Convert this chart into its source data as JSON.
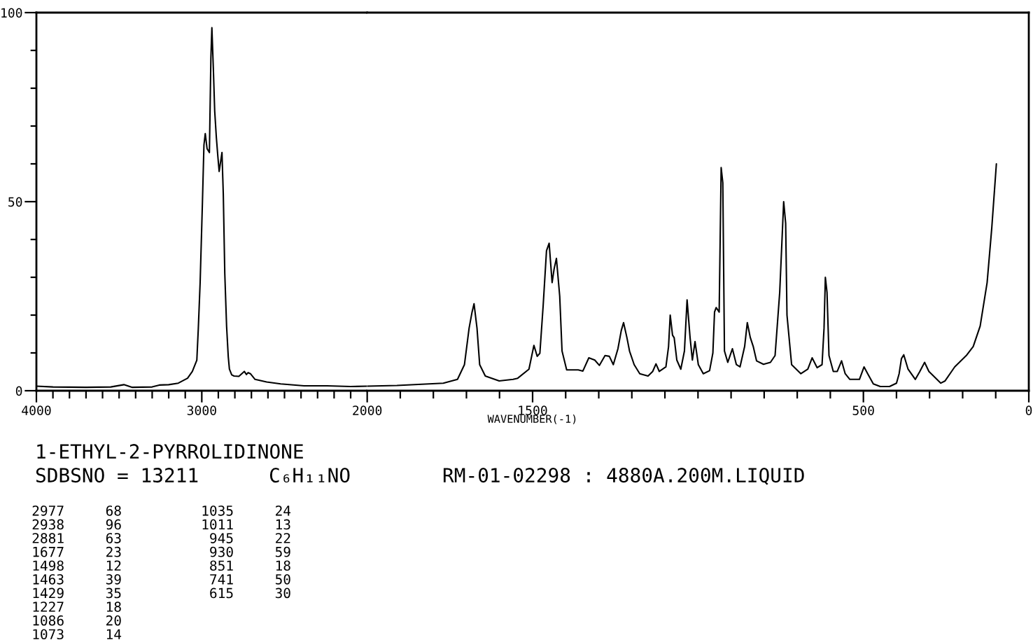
{
  "chart_data": [
    {
      "type": "line",
      "title": "1-ETHYL-2-PYRROLIDINONE",
      "xlim": [
        4000,
        2000
      ],
      "xticks": [
        4000,
        {
          "value": 3900,
          "label": null
        },
        {
          "value": 3800,
          "label": null
        },
        {
          "value": 3700,
          "label": null
        },
        {
          "value": 3600,
          "label": null
        },
        {
          "value": 3500,
          "label": null
        },
        {
          "value": 3400,
          "label": null
        },
        {
          "value": 3300,
          "label": null
        },
        {
          "value": 3200,
          "label": null
        },
        {
          "value": 3100,
          "label": null
        },
        3000,
        {
          "value": 2900,
          "label": null
        },
        {
          "value": 2800,
          "label": null
        },
        {
          "value": 2700,
          "label": null
        },
        {
          "value": 2600,
          "label": null
        },
        {
          "value": 2500,
          "label": null
        },
        {
          "value": 2400,
          "label": null
        },
        {
          "value": 2300,
          "label": null
        },
        {
          "value": 2200,
          "label": null
        },
        {
          "value": 2100,
          "label": null
        },
        2000
      ],
      "ylim": [
        0,
        100
      ],
      "yticks": [
        0,
        {
          "value": 10,
          "label": null
        },
        {
          "value": 20,
          "label": null
        },
        {
          "value": 30,
          "label": null
        },
        {
          "value": 40,
          "label": null
        },
        50,
        {
          "value": 60,
          "label": null
        },
        {
          "value": 70,
          "label": null
        },
        {
          "value": 80,
          "label": null
        },
        {
          "value": 90,
          "label": null
        },
        100
      ],
      "series": [
        {
          "color": "#000000",
          "x": [
            4000,
            3900,
            3700,
            3550,
            3471,
            3420,
            3300,
            3257,
            3200,
            3142,
            3086,
            3057,
            3030,
            3021,
            3010,
            2996,
            2987,
            2979,
            2968,
            2954,
            2945,
            2939,
            2930,
            2922,
            2912,
            2903,
            2895,
            2878,
            2870,
            2861,
            2850,
            2840,
            2833,
            2819,
            2805,
            2776,
            2743,
            2730,
            2720,
            2706,
            2678,
            2608,
            2523,
            2382,
            2242,
            2101,
            2000
          ],
          "values": [
            1.2,
            1.0,
            0.9,
            1.0,
            1.6,
            0.9,
            1.0,
            1.5,
            1.6,
            2.0,
            3.3,
            5.1,
            8.1,
            16.5,
            28.6,
            50,
            65,
            68,
            64,
            63,
            88,
            96,
            85,
            74,
            67,
            62,
            58,
            63,
            52,
            31,
            17,
            9,
            5.7,
            4.2,
            3.9,
            3.8,
            5.1,
            4.3,
            4.8,
            4.5,
            3.0,
            2.3,
            1.8,
            1.3,
            1.3,
            1.1,
            1.2
          ]
        }
      ],
      "annotations": [
        "SDBSNO = 13211",
        "C₆H₁₁NO",
        "RM-01-02298 : 4880A.200M.LIQUID",
        "2977     68",
        "2938     96",
        "2881     63",
        "1677     23",
        "1498     12",
        "1463     39",
        "1429     35",
        "1227     18",
        "1086     20",
        "1073     14",
        "1035     24",
        "1011     13",
        "945     22",
        "930     59",
        "851     18",
        "741     50",
        "615     30"
      ]
    },
    {
      "type": "line",
      "xlabel": "WAVENUMBER(-1)",
      "xlim": [
        2000,
        0
      ],
      "xticks": [
        {
          "value": 1900,
          "label": null
        },
        {
          "value": 1800,
          "label": null
        },
        {
          "value": 1700,
          "label": null
        },
        {
          "value": 1600,
          "label": null
        },
        1500,
        {
          "value": 1400,
          "label": null
        },
        {
          "value": 1300,
          "label": null
        },
        {
          "value": 1200,
          "label": null
        },
        {
          "value": 1100,
          "label": null
        },
        {
          "value": 1000,
          "label": null
        },
        {
          "value": 900,
          "label": null
        },
        {
          "value": 800,
          "label": null
        },
        {
          "value": 700,
          "label": null
        },
        {
          "value": 600,
          "label": null
        },
        500,
        {
          "value": 400,
          "label": null
        },
        {
          "value": 300,
          "label": null
        },
        {
          "value": 200,
          "label": null
        },
        {
          "value": 100,
          "label": null
        },
        0
      ],
      "ylim": [
        0,
        100
      ],
      "tick_labels": "x",
      "series": [
        {
          "color": "#000000",
          "x": [
            2000,
            1910,
            1770,
            1727,
            1706,
            1692,
            1683,
            1677,
            1668,
            1660,
            1643,
            1601,
            1559,
            1545,
            1511,
            1496,
            1486,
            1478,
            1468,
            1458,
            1450,
            1441,
            1435,
            1428,
            1418,
            1411,
            1397,
            1362,
            1348,
            1330,
            1312,
            1298,
            1281,
            1268,
            1256,
            1242,
            1232,
            1225,
            1215,
            1207,
            1193,
            1176,
            1151,
            1137,
            1127,
            1117,
            1097,
            1089,
            1084,
            1077,
            1072,
            1064,
            1052,
            1041,
            1033,
            1024,
            1017,
            1009,
            999,
            984,
            965,
            955,
            950,
            945,
            936,
            930,
            925,
            920,
            910,
            896,
            884,
            873,
            859,
            851,
            842,
            833,
            823,
            802,
            781,
            767,
            753,
            741,
            735,
            731,
            717,
            689,
            668,
            655,
            640,
            625,
            619,
            615,
            610,
            604,
            591,
            579,
            566,
            555,
            541,
            512,
            498,
            487,
            470,
            449,
            421,
            400,
            392,
            385,
            378,
            365,
            343,
            330,
            315,
            302,
            266,
            253,
            224,
            189,
            168,
            147,
            126,
            112,
            98
          ],
          "values": [
            1.2,
            1.4,
            2.0,
            3.0,
            6.9,
            16.5,
            20.8,
            23,
            16.5,
            6.9,
            3.9,
            2.6,
            3.0,
            3.3,
            5.7,
            12,
            9.1,
            9.9,
            22.6,
            37,
            39,
            28.6,
            32.2,
            35,
            25,
            10.5,
            5.5,
            5.5,
            5.2,
            8.7,
            8.1,
            6.7,
            9.3,
            9.1,
            6.9,
            11.1,
            15.9,
            18,
            14.1,
            10.5,
            6.9,
            4.5,
            3.9,
            5.1,
            7.1,
            5.1,
            6.3,
            11.7,
            20,
            14.7,
            14,
            8.1,
            5.7,
            10.5,
            24,
            14.1,
            8.1,
            13,
            6.9,
            4.5,
            5.3,
            10,
            20.8,
            22,
            20.8,
            59,
            55,
            10.5,
            7.5,
            11.1,
            6.9,
            6.3,
            11.7,
            18,
            14.1,
            11.7,
            7.9,
            7.0,
            7.5,
            9.3,
            26,
            50,
            44.3,
            20,
            6.9,
            4.5,
            5.7,
            8.7,
            6.1,
            6.9,
            16.5,
            30,
            26,
            9.3,
            5.1,
            5.1,
            7.9,
            4.5,
            3.0,
            3.0,
            6.3,
            4.5,
            1.8,
            1.1,
            1.1,
            2.0,
            4.5,
            8.5,
            9.5,
            5.7,
            3.0,
            5.0,
            7.5,
            5.1,
            2.0,
            2.6,
            6.3,
            9.3,
            11.7,
            17.1,
            28.6,
            43,
            60
          ]
        }
      ]
    }
  ]
}
